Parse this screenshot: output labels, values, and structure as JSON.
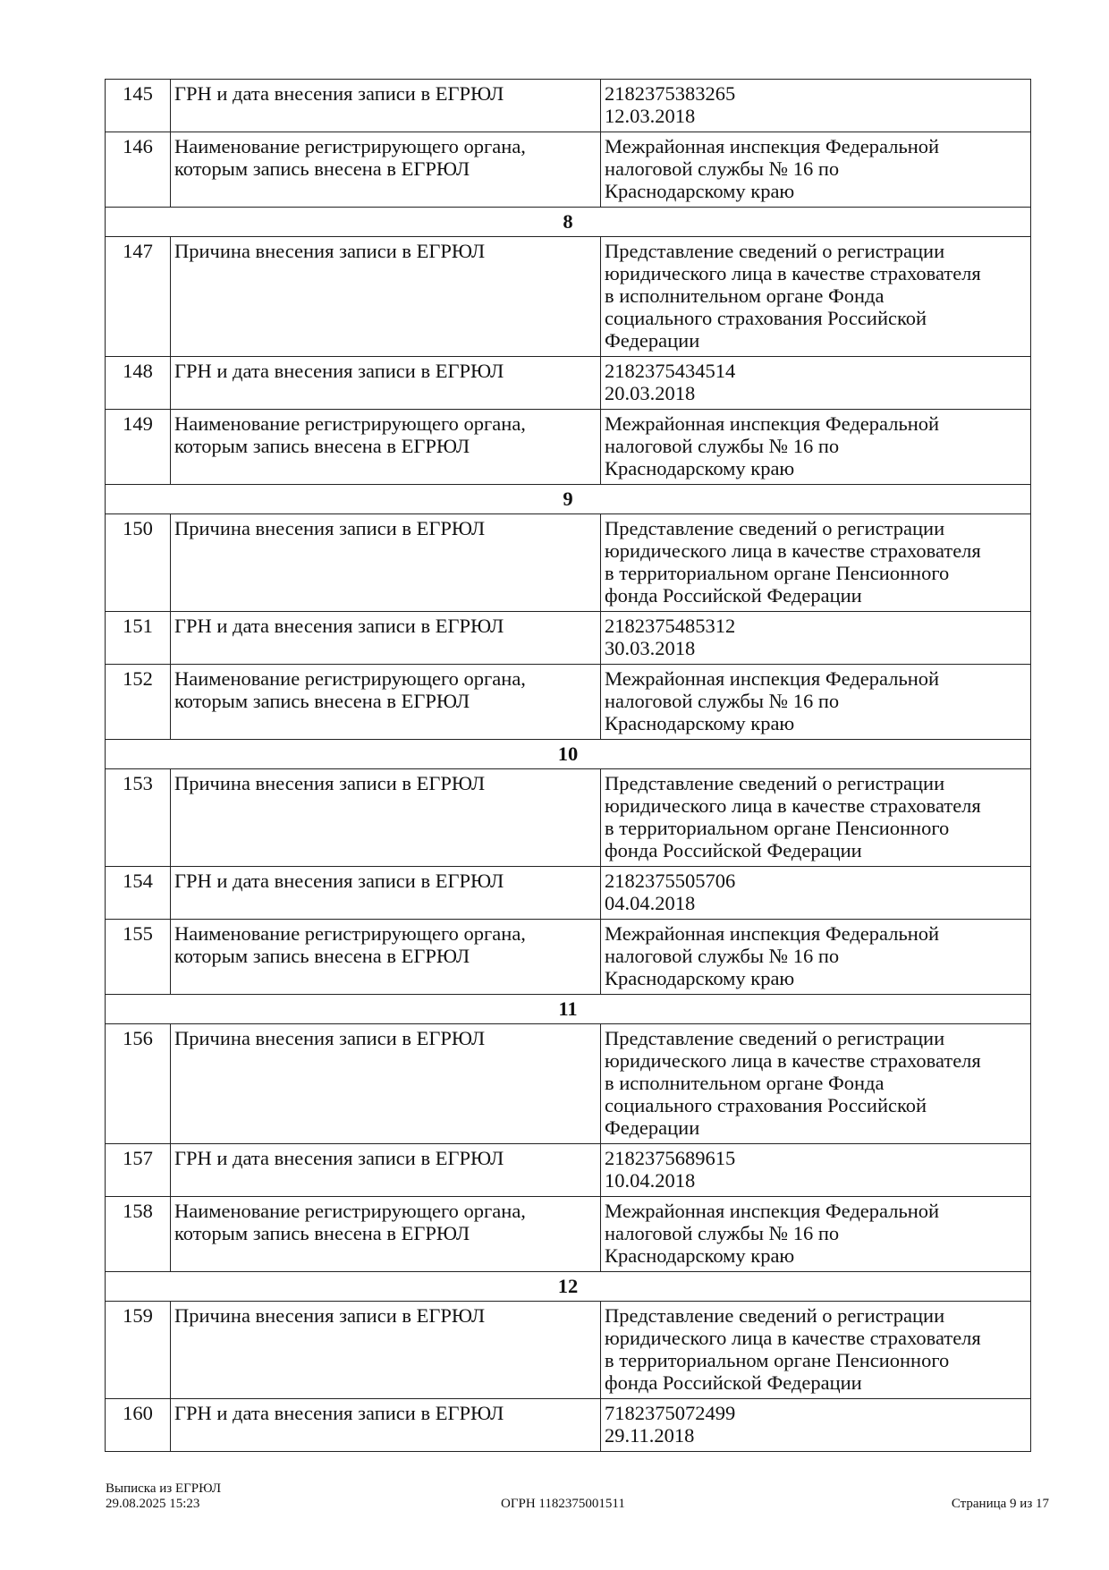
{
  "rows": [
    {
      "type": "item",
      "num": "145",
      "label": [
        "ГРН и дата внесения записи в ЕГРЮЛ"
      ],
      "value": [
        "2182375383265",
        "12.03.2018"
      ]
    },
    {
      "type": "item",
      "num": "146",
      "label": [
        "Наименование регистрирующего органа,",
        "которым запись внесена в ЕГРЮЛ"
      ],
      "value": [
        "Межрайонная инспекция Федеральной",
        "налоговой службы № 16 по",
        "Краснодарскому краю"
      ]
    },
    {
      "type": "section",
      "title": "8"
    },
    {
      "type": "item",
      "num": "147",
      "label": [
        "Причина внесения записи в ЕГРЮЛ"
      ],
      "value": [
        "Представление сведений о регистрации",
        "юридического лица в качестве страхователя",
        "в исполнительном органе Фонда",
        "социального страхования Российской",
        "Федерации"
      ]
    },
    {
      "type": "item",
      "num": "148",
      "label": [
        "ГРН и дата внесения записи в ЕГРЮЛ"
      ],
      "value": [
        "2182375434514",
        "20.03.2018"
      ]
    },
    {
      "type": "item",
      "num": "149",
      "label": [
        "Наименование регистрирующего органа,",
        "которым запись внесена в ЕГРЮЛ"
      ],
      "value": [
        "Межрайонная инспекция Федеральной",
        "налоговой службы № 16 по",
        "Краснодарскому краю"
      ]
    },
    {
      "type": "section",
      "title": "9"
    },
    {
      "type": "item",
      "num": "150",
      "label": [
        "Причина внесения записи в ЕГРЮЛ"
      ],
      "value": [
        "Представление сведений о регистрации",
        "юридического лица в качестве страхователя",
        "в территориальном органе Пенсионного",
        "фонда Российской Федерации"
      ]
    },
    {
      "type": "item",
      "num": "151",
      "label": [
        "ГРН и дата внесения записи в ЕГРЮЛ"
      ],
      "value": [
        "2182375485312",
        "30.03.2018"
      ]
    },
    {
      "type": "item",
      "num": "152",
      "label": [
        "Наименование регистрирующего органа,",
        "которым запись внесена в ЕГРЮЛ"
      ],
      "value": [
        "Межрайонная инспекция Федеральной",
        "налоговой службы № 16 по",
        "Краснодарскому краю"
      ]
    },
    {
      "type": "section",
      "title": "10"
    },
    {
      "type": "item",
      "num": "153",
      "label": [
        "Причина внесения записи в ЕГРЮЛ"
      ],
      "value": [
        "Представление сведений о регистрации",
        "юридического лица в качестве страхователя",
        "в территориальном органе Пенсионного",
        "фонда Российской Федерации"
      ]
    },
    {
      "type": "item",
      "num": "154",
      "label": [
        "ГРН и дата внесения записи в ЕГРЮЛ"
      ],
      "value": [
        "2182375505706",
        "04.04.2018"
      ]
    },
    {
      "type": "item",
      "num": "155",
      "label": [
        "Наименование регистрирующего органа,",
        "которым запись внесена в ЕГРЮЛ"
      ],
      "value": [
        "Межрайонная инспекция Федеральной",
        "налоговой службы № 16 по",
        "Краснодарскому краю"
      ]
    },
    {
      "type": "section",
      "title": "11"
    },
    {
      "type": "item",
      "num": "156",
      "label": [
        "Причина внесения записи в ЕГРЮЛ"
      ],
      "value": [
        "Представление сведений о регистрации",
        "юридического лица в качестве страхователя",
        "в исполнительном органе Фонда",
        "социального страхования Российской",
        "Федерации"
      ]
    },
    {
      "type": "item",
      "num": "157",
      "label": [
        "ГРН и дата внесения записи в ЕГРЮЛ"
      ],
      "value": [
        "2182375689615",
        "10.04.2018"
      ]
    },
    {
      "type": "item",
      "num": "158",
      "label": [
        "Наименование регистрирующего органа,",
        "которым запись внесена в ЕГРЮЛ"
      ],
      "value": [
        "Межрайонная инспекция Федеральной",
        "налоговой службы № 16 по",
        "Краснодарскому краю"
      ]
    },
    {
      "type": "section",
      "title": "12"
    },
    {
      "type": "item",
      "num": "159",
      "label": [
        "Причина внесения записи в ЕГРЮЛ"
      ],
      "value": [
        "Представление сведений о регистрации",
        "юридического лица в качестве страхователя",
        "в территориальном органе Пенсионного",
        "фонда Российской Федерации"
      ]
    },
    {
      "type": "item",
      "num": "160",
      "label": [
        "ГРН и дата внесения записи в ЕГРЮЛ"
      ],
      "value": [
        "7182375072499",
        "29.11.2018"
      ]
    }
  ],
  "footer": {
    "doc_title": "Выписка из ЕГРЮЛ",
    "datetime": "29.08.2025 15:23",
    "ogrn": "ОГРН 1182375001511",
    "page": "Страница 9 из 17"
  }
}
